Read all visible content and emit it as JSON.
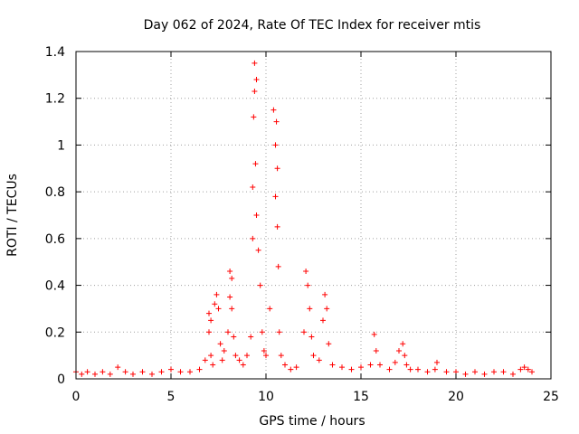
{
  "chart_data": {
    "type": "scatter",
    "title": "Day 062 of 2024, Rate Of TEC Index for receiver mtis",
    "xlabel": "GPS time / hours",
    "ylabel": "ROTI / TECUs",
    "xlim": [
      0,
      25
    ],
    "ylim": [
      0,
      1.4
    ],
    "x_ticks": [
      0,
      5,
      10,
      15,
      20,
      25
    ],
    "x_tick_labels": [
      "0",
      "5",
      "10",
      "15",
      "20",
      "25"
    ],
    "y_ticks": [
      0,
      0.2,
      0.4,
      0.6,
      0.8,
      1,
      1.2,
      1.4
    ],
    "y_tick_labels": [
      "0",
      "0.2",
      "0.4",
      "0.6",
      "0.8",
      "1",
      "1.2",
      "1.4"
    ],
    "grid": true,
    "marker": "+",
    "color": "#ff0000",
    "series": [
      {
        "x": [
          0.0,
          0.3,
          0.6,
          1.0,
          1.4,
          1.8,
          2.2,
          2.6,
          3.0,
          3.5,
          4.0,
          4.5,
          5.0,
          5.5,
          6.0,
          6.5,
          6.8,
          7.0,
          7.0,
          7.1,
          7.1,
          7.2,
          7.3,
          7.4,
          7.5,
          7.6,
          7.7,
          7.8,
          8.0,
          8.1,
          8.1,
          8.2,
          8.2,
          8.3,
          8.4,
          8.6,
          8.8,
          9.0,
          9.2,
          9.3,
          9.3,
          9.35,
          9.4,
          9.4,
          9.45,
          9.5,
          9.5,
          9.6,
          9.7,
          9.8,
          9.9,
          10.0,
          10.2,
          10.4,
          10.5,
          10.5,
          10.55,
          10.6,
          10.6,
          10.65,
          10.7,
          10.8,
          11.0,
          11.3,
          11.6,
          12.0,
          12.1,
          12.2,
          12.3,
          12.4,
          12.5,
          12.8,
          13.0,
          13.1,
          13.2,
          13.3,
          13.5,
          14.0,
          14.5,
          15.0,
          15.5,
          15.7,
          15.8,
          16.0,
          16.5,
          16.8,
          17.0,
          17.2,
          17.3,
          17.4,
          17.6,
          18.0,
          18.5,
          18.9,
          19.0,
          19.5,
          20.0,
          20.5,
          21.0,
          21.5,
          22.0,
          22.5,
          23.0,
          23.4,
          23.6,
          23.8,
          24.0
        ],
        "y": [
          0.03,
          0.02,
          0.03,
          0.02,
          0.03,
          0.02,
          0.05,
          0.03,
          0.02,
          0.03,
          0.02,
          0.03,
          0.04,
          0.03,
          0.03,
          0.04,
          0.08,
          0.2,
          0.28,
          0.1,
          0.25,
          0.06,
          0.32,
          0.36,
          0.3,
          0.15,
          0.08,
          0.12,
          0.2,
          0.35,
          0.46,
          0.43,
          0.3,
          0.18,
          0.1,
          0.08,
          0.06,
          0.1,
          0.18,
          0.6,
          0.82,
          1.12,
          1.23,
          1.35,
          0.92,
          1.28,
          0.7,
          0.55,
          0.4,
          0.2,
          0.12,
          0.1,
          0.3,
          1.15,
          0.78,
          1.0,
          1.1,
          0.9,
          0.65,
          0.48,
          0.2,
          0.1,
          0.06,
          0.04,
          0.05,
          0.2,
          0.46,
          0.4,
          0.3,
          0.18,
          0.1,
          0.08,
          0.25,
          0.36,
          0.3,
          0.15,
          0.06,
          0.05,
          0.04,
          0.05,
          0.06,
          0.19,
          0.12,
          0.06,
          0.04,
          0.07,
          0.12,
          0.15,
          0.1,
          0.06,
          0.04,
          0.04,
          0.03,
          0.04,
          0.07,
          0.03,
          0.03,
          0.02,
          0.03,
          0.02,
          0.03,
          0.03,
          0.02,
          0.04,
          0.05,
          0.04,
          0.03
        ]
      }
    ]
  }
}
